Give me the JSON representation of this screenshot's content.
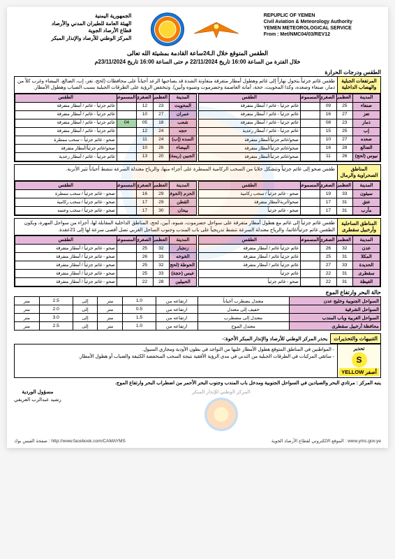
{
  "header": {
    "left": {
      "l1": "REPUPLIC OF YEMEN",
      "l2": "Civil Aviation & Meteorology Authority",
      "l3": "YEMEN METEOROLOGICAL SERVICE",
      "l4": "From : Met/NMC04/03/REV12"
    },
    "right": {
      "l1": "الجمهورية اليمنية",
      "l2": "الهيئة العامة للطيران المدني والأرصاد",
      "l3": "قطاع الأرصاد الجوية",
      "l4": "المركز الوطني للأرصاد والإنذار المبكر"
    },
    "title1": "الطقس المتوقع خلال الـ24ساعة القادمة بمشيئة الله تعالى",
    "title2": "خلال الفترة من الساعة 16:00 تاريخ 22/11/2024 م  حتى الساعة 16:00 تاريخ 23/11/2024م"
  },
  "columns": {
    "city": "المدينة",
    "max": "العظمى",
    "min": "الصغرى",
    "cloud": "المسموعة",
    "cond": "الطقس"
  },
  "section1": {
    "label": "المرتفعات الجبلية والهضاب الداخلية",
    "heading": "الطقس ودرجات الحرارة",
    "desc": "طقس غائم جزئياً يتحول نهاراً إلى غائم وهطول أمطار متفرقة متفاوتة الشدة قد يصاحبها الرعد أحياناً على محافظات (لحج، تعز، إب، الضالع، البيضاء وغرب كلاً من ذمار، صنعاء وصعده، وكذا المحويت، حجة، أمانة العاصمة وحضرموت وشبوه وأبين). وتنخفض الرؤية على الطرقات الجبلية بسبب الضباب وهطول الأمطار.",
    "tableA": [
      {
        "city": "صنعاء",
        "max": "25",
        "min": "09",
        "cloud": "",
        "cond": "غائم جزئياً - غائم / أمطار متفرقة"
      },
      {
        "city": "تعز",
        "max": "27",
        "min": "16",
        "cloud": "",
        "cond": "غائم جزئياً - غائم / أمطار متفرقة"
      },
      {
        "city": "ذمار",
        "max": "23",
        "min": "08",
        "cloud": "",
        "cond": "غائم جزئياً - غائم / أمطار متفرقة"
      },
      {
        "city": "إب",
        "max": "25",
        "min": "15",
        "cloud": "",
        "cond": "غائم جزئياً - غائم / أمطار رعدية"
      },
      {
        "city": "صعده",
        "max": "27",
        "min": "10",
        "cloud": "",
        "cond": "صحو/غائم جزئياً/أمطار متفرقة"
      },
      {
        "city": "الضالع",
        "max": "28",
        "min": "16",
        "cloud": "",
        "cond": "صحو/غائم جزئياً/أمطار متفرقة"
      },
      {
        "city": "نيوس (لحج)",
        "max": "26",
        "min": "11",
        "cloud": "",
        "cond": "صحو/غائم جزئياً/أمطار متفرقة"
      }
    ],
    "tableB": [
      {
        "city": "المحويت",
        "max": "23",
        "min": "12",
        "cloud": "",
        "cond": "غائم جزئياً - غائم / أمطار متفرقة"
      },
      {
        "city": "عمران",
        "max": "27",
        "min": "10",
        "cloud": "",
        "cond": "غائم جزئياً - غائم / أمطار متفرقة"
      },
      {
        "city": "شعب",
        "max": "18",
        "min": "05",
        "cloud": "04",
        "cond": "غائم جزئياً - غائم / أمطار متفرقة",
        "hot": true
      },
      {
        "city": "حجه",
        "max": "24",
        "min": "12",
        "cloud": "",
        "cond": "غائم جزئياً - غائم / أمطار متفرقة"
      },
      {
        "city": "السده (إب)",
        "max": "24",
        "min": "11",
        "cloud": "",
        "cond": "صحو - غائم جزئياً – سحب ممطرة"
      },
      {
        "city": "البيضاء",
        "max": "26",
        "min": "10",
        "cloud": "",
        "cond": "صحو/غائم جزئياً/أمطار متفرقة"
      },
      {
        "city": "الجبين (ريمة)",
        "max": "20",
        "min": "13",
        "cloud": "",
        "cond": "غائم جزئياً - غائم / أمطار رعدية"
      }
    ]
  },
  "section2": {
    "label": "المناطق الصحراوية والرمال",
    "desc": "طقس صحو إلى غائم جزئياً وتتشكل خلايا من السحب الركامية الممطرة على أجزاء منها، والرياح معتدلة السرعة تنشط أحياناً تثير الأتربة.",
    "tableA": [
      {
        "city": "سيئون",
        "max": "33",
        "min": "19",
        "cloud": "",
        "cond": "صحو - غائم جزئياً / سحب ركامية"
      },
      {
        "city": "عتق",
        "max": "31",
        "min": "17",
        "cloud": "",
        "cond": "صحو/أتربة/أمطار متفرقة"
      },
      {
        "city": "مأرب",
        "max": "31",
        "min": "17",
        "cloud": "",
        "cond": "صحو - غائم جزئياً"
      }
    ],
    "tableB": [
      {
        "city": "الحزم (الجوف)",
        "max": "29",
        "min": "16",
        "cloud": "",
        "cond": "صحو - غائم جزئياً / سحب ممطرة"
      },
      {
        "city": "القطن",
        "max": "29",
        "min": "17",
        "cloud": "",
        "cond": "صحو - غائم جزئياً / سحب ركامية"
      },
      {
        "city": "بيحان",
        "max": "30",
        "min": "17",
        "cloud": "",
        "cond": "صحو - غائم جزئياً / سحب وعتمه"
      }
    ]
  },
  "section3": {
    "label": "المناطق الساحلية وأرخبيل سقطرى",
    "desc": "طقس غائم جزئياً إلى غائم مع هطول أمطار متفرقة على سواحل حضرموت، شبوه، أبين، لحج، المناطق الداخلية المقابلة لها، أجزاء من سواحل المهرة، ويكون الطقس غائم جزئياً/غائما، والرياح معتدلة السرعة تنشط تدريجياً على باب المندب وجنوب الساحل الغربي تصل أقصى سرعة لها إلى 21عقدة.",
    "tableA": [
      {
        "city": "عدن",
        "max": "32",
        "min": "26",
        "cloud": "",
        "cond": "غائم جزئياً غائم / أمطار متفرقة"
      },
      {
        "city": "المكلا",
        "max": "31",
        "min": "25",
        "cloud": "",
        "cond": "غائم جزئياً غائم / أمطار متفرقة"
      },
      {
        "city": "الحديدة",
        "max": "33",
        "min": "27",
        "cloud": "",
        "cond": "غائم جزئياً غائم / أمطار متفرقة"
      },
      {
        "city": "سقطرى",
        "max": "31",
        "min": "22",
        "cloud": "",
        "cond": "غائم جزئياً"
      },
      {
        "city": "الغيظة",
        "max": "31",
        "min": "22",
        "cloud": "",
        "cond": "صحو - غائم جزئياً"
      }
    ],
    "tableB": [
      {
        "city": "زنجبار",
        "max": "32",
        "min": "25",
        "cloud": "",
        "cond": "صحو - غائم جزئياً / أمطار متفرقة"
      },
      {
        "city": "الخوخه",
        "max": "33",
        "min": "26",
        "cloud": "",
        "cond": "صحو - غائم جزئياً / أمطار متفرقة"
      },
      {
        "city": "الحوطة (لحج)",
        "max": "32",
        "min": "25",
        "cloud": "",
        "cond": "صحو - غائم جزئياً / أمطار متفرقة"
      },
      {
        "city": "عبس (حجة)",
        "max": "33",
        "min": "25",
        "cloud": "",
        "cond": "صحو - غائم جزئياً / أمطار متفرقة"
      },
      {
        "city": "الحبيلين",
        "max": "28",
        "min": "22",
        "cloud": "",
        "cond": "صحو - غائم جزئياً / أمطار متفرقة"
      }
    ]
  },
  "sea": {
    "heading": "حالة البحر وارتفاع الموج",
    "cols": {
      "coast": "",
      "state": "",
      "from": "ارتفاعه من",
      "to": "إلى",
      "unit_m": "متر"
    },
    "rows": [
      {
        "coast": "السواحل الجنوبية وخليج عدن",
        "state": "معتدل يضطرب أحياناً",
        "from": "1.0",
        "to": "2.5"
      },
      {
        "coast": "السواحل الشرقية",
        "state": "خفيف إلى معتدل",
        "from": "0.5",
        "to": "2.0"
      },
      {
        "coast": "السواحل الغربية وباب المندب",
        "state": "معتدل إلى مضطرب",
        "from": "1.5",
        "to": "3.0"
      },
      {
        "coast": "محافظة أرخبيل سقطرى",
        "state": "معتدل الموج",
        "from": "1.0",
        "to": "2.5"
      }
    ]
  },
  "warnings": {
    "label": "التنبيهات والتحذيرات",
    "intro": "يحذر المركز الوطني للأرصاد والإنذار المبكر الأخوة:-",
    "badge_top": "تحذير",
    "badge_letter": "S",
    "badge_yel": "أصفر YELLOW",
    "items": [
      "المواطنين في المناطق المتوقع هطول الأمطار عليها من التواجد في بطون الأودية ومجاري السيول.",
      "سائقي المركبات في الطرقات الجبلية من التدني في مدى الرؤية الأفقية نتيجة السحب المنخفضة الكثيفة والضباب أو هطول الأمطار."
    ],
    "footer": "ينبه المركز : مرتادي البحر والصيادين في السواحل الجنوبية ومدخل باب المندب وجنوب البحر الأحمر من اضطراب البحر وارتفاع الموج."
  },
  "signatures": {
    "wm": "المركز الوطني للإنذار المبكر",
    "right_title": "مسؤول الوردية",
    "right_name": "رشيد عبدالرب العريقي"
  },
  "page_links": {
    "fb": "صفحة الفيس بوك : http://www.facebook.com/CAMAYMS",
    "site": "الموقع الالكتروني لقطاع الأرصاد الجوية : www.yms.gov.ye"
  }
}
